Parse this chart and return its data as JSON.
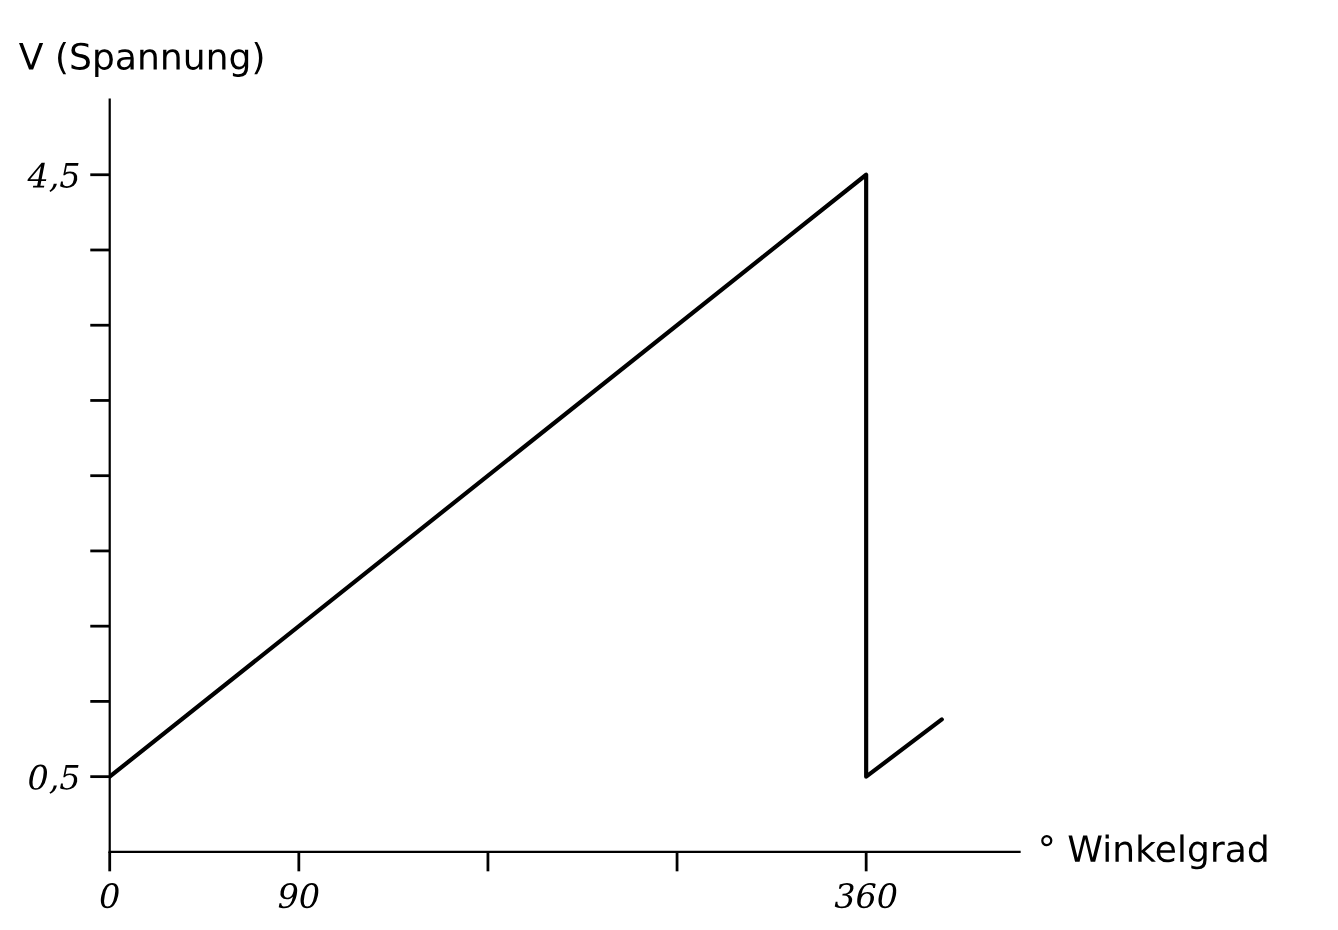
{
  "chart_data": {
    "type": "line",
    "xlabel": "° Winkelgrad",
    "ylabel": "V (Spannung)",
    "x": [
      0,
      360,
      360,
      396
    ],
    "series": [
      {
        "color": "#000000",
        "values": [
          0.5,
          4.5,
          0.5,
          0.88
        ]
      }
    ],
    "xlim": [
      0,
      433
    ],
    "ylim": [
      0,
      5
    ],
    "xticks": [
      0,
      90,
      {
        "value": 180,
        "label": null
      },
      {
        "value": 270,
        "label": null
      },
      360
    ],
    "yticks": [
      {
        "value": 0.5,
        "label": "0,5"
      },
      {
        "value": 1,
        "label": null
      },
      {
        "value": 1.5,
        "label": null
      },
      {
        "value": 2,
        "label": null
      },
      {
        "value": 2.5,
        "label": null
      },
      {
        "value": 3,
        "label": null
      },
      {
        "value": 3.5,
        "label": null
      },
      {
        "value": 4,
        "label": null
      },
      {
        "value": 4.5,
        "label": "4,5"
      }
    ],
    "grid": false,
    "legend": false,
    "line_style": "solid",
    "marker": "none"
  }
}
